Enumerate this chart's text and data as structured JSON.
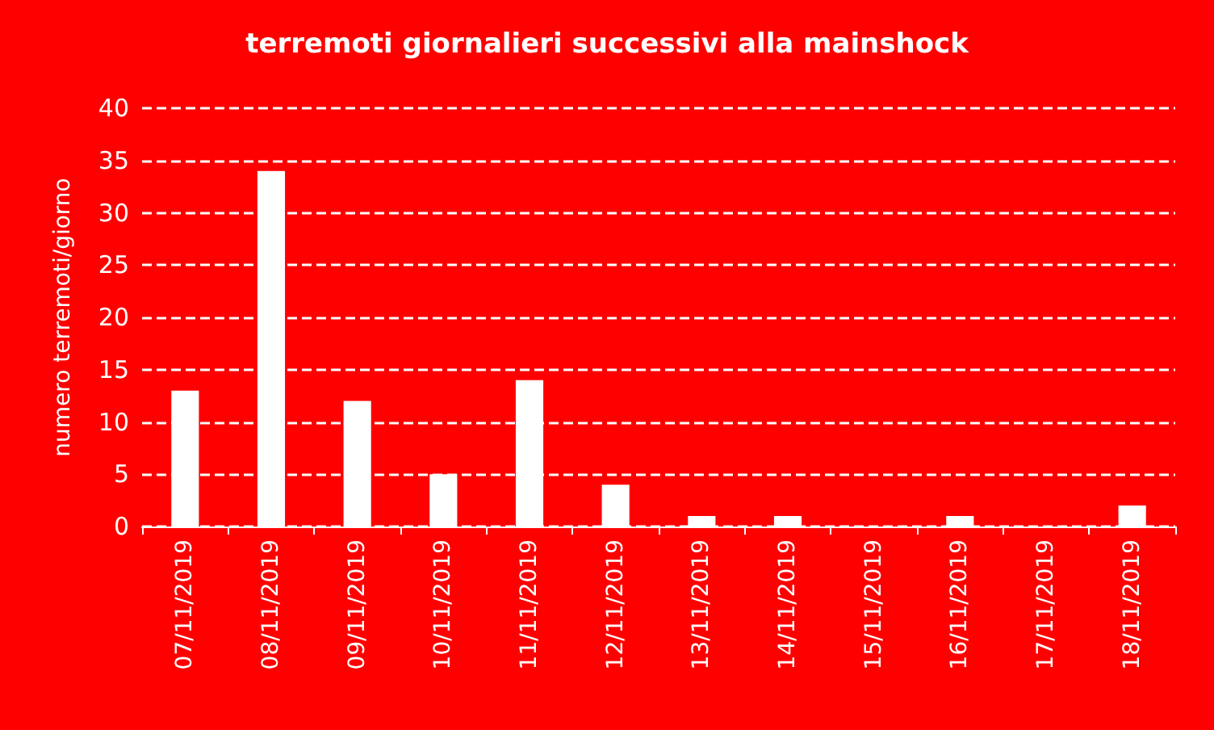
{
  "chart_data": {
    "type": "bar",
    "title": "terremoti giornalieri successivi alla mainshock",
    "ylabel": "numero terremoti/giorno",
    "categories": [
      "07/11/2019",
      "08/11/2019",
      "09/11/2019",
      "10/11/2019",
      "11/11/2019",
      "12/11/2019",
      "13/11/2019",
      "14/11/2019",
      "15/11/2019",
      "16/11/2019",
      "17/11/2019",
      "18/11/2019"
    ],
    "values": [
      13,
      34,
      12,
      5,
      14,
      4,
      1,
      1,
      0,
      1,
      0,
      2
    ],
    "color": "#ffffff",
    "ylim": [
      0,
      40
    ],
    "yticks": [
      0,
      5,
      10,
      15,
      20,
      25,
      30,
      35,
      40
    ],
    "grid": "y"
  }
}
